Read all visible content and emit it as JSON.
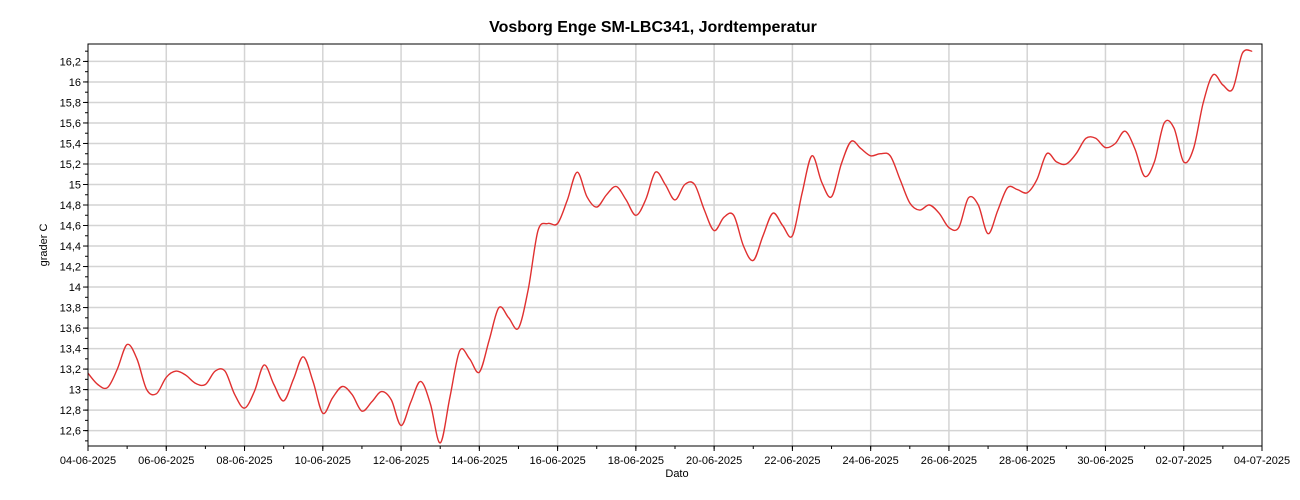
{
  "chart_data": {
    "type": "line",
    "title": "Vosborg Enge SM-LBC341, Jordtemperatur",
    "xlabel": "Dato",
    "ylabel": "grader C",
    "xlim": [
      "2025-06-04",
      "2025-07-04"
    ],
    "ylim": [
      12.45,
      16.37
    ],
    "grid": true,
    "x_ticks": [
      "04-06-2025",
      "06-06-2025",
      "08-06-2025",
      "10-06-2025",
      "12-06-2025",
      "14-06-2025",
      "16-06-2025",
      "18-06-2025",
      "20-06-2025",
      "22-06-2025",
      "24-06-2025",
      "26-06-2025",
      "28-06-2025",
      "30-06-2025",
      "02-07-2025",
      "04-07-2025"
    ],
    "y_ticks": [
      "12,6",
      "12,8",
      "13",
      "13,2",
      "13,4",
      "13,6",
      "13,8",
      "14",
      "14,2",
      "14,4",
      "14,6",
      "14,8",
      "15",
      "15,2",
      "15,4",
      "15,6",
      "15,8",
      "16",
      "16,2"
    ],
    "line_color": "#e03030",
    "series": [
      {
        "x": [
          "2025-06-04 00:00",
          "2025-06-04 06:00",
          "2025-06-04 12:00",
          "2025-06-04 18:00",
          "2025-06-05 00:00",
          "2025-06-05 06:00",
          "2025-06-05 12:00",
          "2025-06-05 18:00",
          "2025-06-06 00:00",
          "2025-06-06 06:00",
          "2025-06-06 12:00",
          "2025-06-06 18:00",
          "2025-06-07 00:00",
          "2025-06-07 06:00",
          "2025-06-07 12:00",
          "2025-06-07 18:00",
          "2025-06-08 00:00",
          "2025-06-08 06:00",
          "2025-06-08 12:00",
          "2025-06-08 18:00",
          "2025-06-09 00:00",
          "2025-06-09 06:00",
          "2025-06-09 12:00",
          "2025-06-09 18:00",
          "2025-06-10 00:00",
          "2025-06-10 06:00",
          "2025-06-10 12:00",
          "2025-06-10 18:00",
          "2025-06-11 00:00",
          "2025-06-11 06:00",
          "2025-06-11 12:00",
          "2025-06-11 18:00",
          "2025-06-12 00:00",
          "2025-06-12 06:00",
          "2025-06-12 12:00",
          "2025-06-12 18:00",
          "2025-06-13 00:00",
          "2025-06-13 06:00",
          "2025-06-13 12:00",
          "2025-06-13 18:00",
          "2025-06-14 00:00",
          "2025-06-14 06:00",
          "2025-06-14 12:00",
          "2025-06-14 18:00",
          "2025-06-15 00:00",
          "2025-06-15 06:00",
          "2025-06-15 12:00",
          "2025-06-15 18:00",
          "2025-06-16 00:00",
          "2025-06-16 06:00",
          "2025-06-16 12:00",
          "2025-06-16 18:00",
          "2025-06-17 00:00",
          "2025-06-17 06:00",
          "2025-06-17 12:00",
          "2025-06-17 18:00",
          "2025-06-18 00:00",
          "2025-06-18 06:00",
          "2025-06-18 12:00",
          "2025-06-18 18:00",
          "2025-06-19 00:00",
          "2025-06-19 06:00",
          "2025-06-19 12:00",
          "2025-06-19 18:00",
          "2025-06-20 00:00",
          "2025-06-20 06:00",
          "2025-06-20 12:00",
          "2025-06-20 18:00",
          "2025-06-21 00:00",
          "2025-06-21 06:00",
          "2025-06-21 12:00",
          "2025-06-21 18:00",
          "2025-06-22 00:00",
          "2025-06-22 06:00",
          "2025-06-22 12:00",
          "2025-06-22 18:00",
          "2025-06-23 00:00",
          "2025-06-23 06:00",
          "2025-06-23 12:00",
          "2025-06-23 18:00",
          "2025-06-24 00:00",
          "2025-06-24 06:00",
          "2025-06-24 12:00",
          "2025-06-24 18:00",
          "2025-06-25 00:00",
          "2025-06-25 06:00",
          "2025-06-25 12:00",
          "2025-06-25 18:00",
          "2025-06-26 00:00",
          "2025-06-26 06:00",
          "2025-06-26 12:00",
          "2025-06-26 18:00",
          "2025-06-27 00:00",
          "2025-06-27 06:00",
          "2025-06-27 12:00",
          "2025-06-27 18:00",
          "2025-06-28 00:00",
          "2025-06-28 06:00",
          "2025-06-28 12:00",
          "2025-06-28 18:00",
          "2025-06-29 00:00",
          "2025-06-29 06:00",
          "2025-06-29 12:00",
          "2025-06-29 18:00",
          "2025-06-30 00:00",
          "2025-06-30 06:00",
          "2025-06-30 12:00",
          "2025-06-30 18:00",
          "2025-07-01 00:00",
          "2025-07-01 06:00",
          "2025-07-01 12:00",
          "2025-07-01 18:00",
          "2025-07-02 00:00",
          "2025-07-02 06:00",
          "2025-07-02 12:00",
          "2025-07-02 18:00",
          "2025-07-03 00:00",
          "2025-07-03 06:00",
          "2025-07-03 12:00",
          "2025-07-03 18:00"
        ],
        "y": [
          13.16,
          13.05,
          13.02,
          13.2,
          13.44,
          13.3,
          13.0,
          12.96,
          13.12,
          13.18,
          13.14,
          13.06,
          13.05,
          13.18,
          13.18,
          12.95,
          12.82,
          12.98,
          13.24,
          13.05,
          12.89,
          13.1,
          13.32,
          13.08,
          12.77,
          12.92,
          13.03,
          12.95,
          12.79,
          12.88,
          12.98,
          12.9,
          12.65,
          12.88,
          13.08,
          12.86,
          12.48,
          12.93,
          13.38,
          13.3,
          13.17,
          13.48,
          13.8,
          13.7,
          13.6,
          13.98,
          14.55,
          14.62,
          14.62,
          14.85,
          15.12,
          14.88,
          14.78,
          14.9,
          14.98,
          14.85,
          14.7,
          14.85,
          15.12,
          15.0,
          14.85,
          15.0,
          15.0,
          14.75,
          14.55,
          14.68,
          14.7,
          14.4,
          14.26,
          14.5,
          14.72,
          14.6,
          14.5,
          14.92,
          15.28,
          15.02,
          14.88,
          15.2,
          15.42,
          15.35,
          15.28,
          15.3,
          15.28,
          15.05,
          14.82,
          14.75,
          14.8,
          14.72,
          14.58,
          14.58,
          14.87,
          14.8,
          14.52,
          14.75,
          14.97,
          14.95,
          14.92,
          15.05,
          15.3,
          15.22,
          15.2,
          15.3,
          15.45,
          15.45,
          15.36,
          15.4,
          15.52,
          15.35,
          15.08,
          15.22,
          15.6,
          15.55,
          15.22,
          15.35,
          15.8,
          16.07,
          15.97,
          15.93,
          16.28,
          16.3
        ]
      }
    ]
  }
}
